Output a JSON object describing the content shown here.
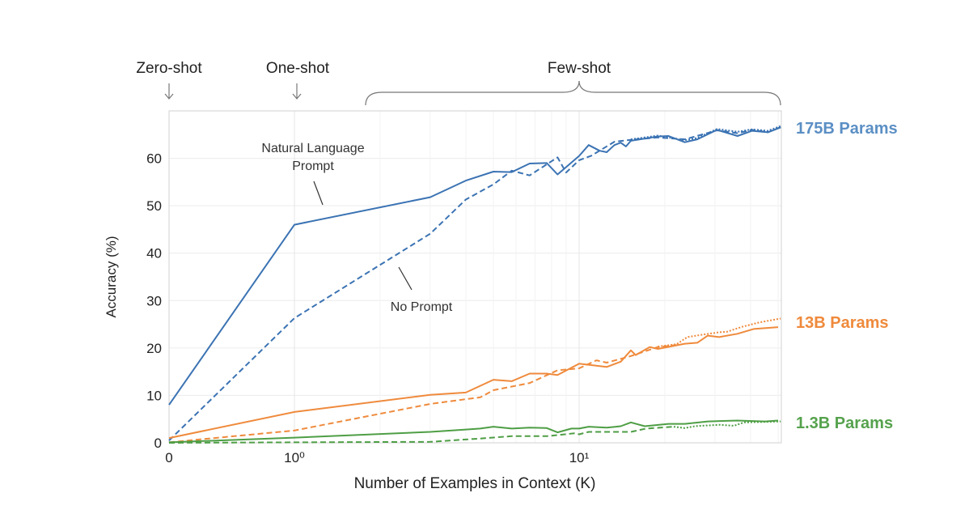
{
  "chart_data": {
    "type": "line",
    "xlabel": "Number of Examples in Context  (K)",
    "ylabel": "Accuracy (%)",
    "x_scale": "symlog",
    "xlim": [
      0,
      51
    ],
    "ylim": [
      0,
      70
    ],
    "x_tick_labels": [
      {
        "value": 0,
        "label": "0"
      },
      {
        "value": 1,
        "label": "10⁰"
      },
      {
        "value": 10,
        "label": "10¹"
      }
    ],
    "y_ticks": [
      0,
      10,
      20,
      30,
      40,
      50,
      60
    ],
    "grid": true,
    "top_annotations": {
      "zero_shot": "Zero-shot",
      "one_shot": "One-shot",
      "few_shot": "Few-shot"
    },
    "annotations": {
      "natural_language_line1": "Natural Language",
      "natural_language_line2": "Prompt",
      "no_prompt": "No Prompt"
    },
    "group_labels": [
      {
        "label": "175B Params",
        "color": "#5b8fc4"
      },
      {
        "label": "13B Params",
        "color": "#ef8a3c"
      },
      {
        "label": "1.3B Params",
        "color": "#56a24d"
      }
    ],
    "series": [
      {
        "group": "175B Params",
        "style": "solid",
        "color": "#3b73b3",
        "x": [
          0,
          1,
          3,
          4,
          5,
          5.8,
          6.7,
          7.7,
          8.4,
          10,
          10.8,
          11.8,
          12.5,
          13.3,
          14,
          14.6,
          15.2,
          18.9,
          20.6,
          23.5,
          26,
          30.5,
          36,
          40.5,
          46,
          51
        ],
        "y": [
          8,
          46,
          51.8,
          55.3,
          57.2,
          57.1,
          58.9,
          59.0,
          56.6,
          60.5,
          62.8,
          61.6,
          61.3,
          62.8,
          63.3,
          62.5,
          63.7,
          64.6,
          64.7,
          63.4,
          64.0,
          66.0,
          64.7,
          65.8,
          65.5,
          66.5
        ]
      },
      {
        "group": "175B Params",
        "style": "dashed",
        "color": "#3b73b3",
        "x": [
          0,
          1,
          3,
          4,
          5,
          5.8,
          6.7,
          8.4,
          9,
          10,
          11,
          13.3,
          15.2,
          18.9,
          23.5,
          30.5,
          36,
          40.5,
          46,
          51
        ],
        "y": [
          0.5,
          26.3,
          44.1,
          51.3,
          54.5,
          57.4,
          56.4,
          60.2,
          57.0,
          59.6,
          60.5,
          63.5,
          63.9,
          64.4,
          64.0,
          65.9,
          65.3,
          66.0,
          65.5,
          66.6
        ]
      },
      {
        "group": "175B Params",
        "style": "dotted",
        "color": "#3b73b3",
        "x": [
          15.2,
          18.9,
          23.5,
          26,
          30.5,
          36,
          40.5,
          46,
          51
        ],
        "y": [
          64.0,
          64.8,
          63.8,
          64.3,
          66.2,
          65.6,
          66.1,
          65.8,
          66.8
        ]
      },
      {
        "group": "13B Params",
        "style": "solid",
        "color": "#ef8a3c",
        "x": [
          0,
          1,
          3,
          4,
          5,
          5.8,
          6.7,
          7.7,
          8.4,
          10,
          12.5,
          14,
          15.2,
          15.8,
          17.7,
          18.9,
          23.5,
          26,
          28.3,
          31,
          36,
          41,
          50
        ],
        "y": [
          1.0,
          6.5,
          10.1,
          10.6,
          13.3,
          13.0,
          14.6,
          14.6,
          14.3,
          16.7,
          16.0,
          17.1,
          19.5,
          18.5,
          20.2,
          19.8,
          20.9,
          21.1,
          22.6,
          22.3,
          23.0,
          24.0,
          24.4
        ]
      },
      {
        "group": "13B Params",
        "style": "dashed",
        "color": "#ef8a3c",
        "x": [
          0,
          1,
          3,
          4,
          4.5,
          5,
          6.7,
          8.4,
          10,
          11.5,
          12.5,
          15.2,
          18.9,
          22
        ],
        "y": [
          0.1,
          2.6,
          8.2,
          9.2,
          9.6,
          11.1,
          12.6,
          15.3,
          15.7,
          17.4,
          16.9,
          18.3,
          20.2,
          20.6
        ]
      },
      {
        "group": "13B Params",
        "style": "dotted",
        "color": "#ef8a3c",
        "x": [
          18.9,
          22,
          24,
          27,
          31,
          33,
          37,
          43,
          51
        ],
        "y": [
          20.3,
          20.8,
          22.3,
          22.8,
          23.3,
          23.4,
          24.4,
          25.4,
          26.2
        ]
      },
      {
        "group": "1.3B Params",
        "style": "solid",
        "color": "#4e9e45",
        "x": [
          0,
          1,
          3,
          4,
          4.5,
          5,
          5.8,
          6.7,
          7.7,
          8.4,
          9.4,
          10,
          10.8,
          12.5,
          14,
          15.2,
          17,
          20.6,
          23.5,
          28.3,
          36,
          45,
          50
        ],
        "y": [
          0.1,
          1.1,
          2.3,
          2.8,
          3.0,
          3.4,
          3.0,
          3.2,
          3.1,
          2.2,
          3.0,
          3.0,
          3.4,
          3.2,
          3.5,
          4.3,
          3.5,
          4.0,
          4.0,
          4.5,
          4.7,
          4.5,
          4.7
        ]
      },
      {
        "group": "1.3B Params",
        "style": "dashed",
        "color": "#4e9e45",
        "x": [
          0,
          1,
          3,
          4,
          4.5,
          5.8,
          7.7,
          9.6,
          10,
          10.8,
          15.2,
          17.2,
          21.5
        ],
        "y": [
          0,
          0.1,
          0.2,
          0.7,
          0.9,
          1.4,
          1.4,
          2.0,
          1.8,
          2.3,
          2.3,
          3.0,
          3.4
        ]
      },
      {
        "group": "1.3B Params",
        "style": "dotted",
        "color": "#4e9e45",
        "x": [
          21.5,
          23.5,
          25.5,
          31,
          35,
          38,
          51
        ],
        "y": [
          3.4,
          3.1,
          3.5,
          3.8,
          3.6,
          4.3,
          4.5
        ]
      }
    ]
  }
}
